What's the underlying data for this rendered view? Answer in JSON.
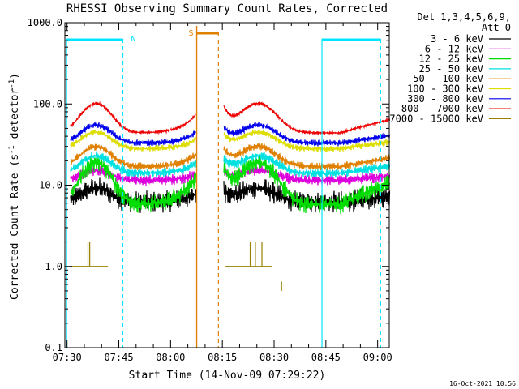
{
  "chart_data": {
    "type": "line",
    "title": "RHESSI Observing Summary Count Rates, Corrected",
    "xlabel": "Start Time (14-Nov-09 07:29:22)",
    "ylabel_main": "Corrected Count Rate (s",
    "ylabel_sup1": "-1",
    "ylabel_mid": " detector",
    "ylabel_sup2": "-1",
    "ylabel_end": ")",
    "yscale": "log",
    "ylim": [
      0.1,
      1000
    ],
    "xlim_minutes": [
      0,
      94
    ],
    "x_ticks": [
      "07:30",
      "07:45",
      "08:00",
      "08:15",
      "08:30",
      "08:45",
      "09:00"
    ],
    "y_ticks": [
      "0.1",
      "1.0",
      "10.0",
      "100.0",
      "1000.0"
    ],
    "legend": {
      "header1": "Det 1,3,4,5,6,9,",
      "header2": "Att 0",
      "placement": "right"
    },
    "series": [
      {
        "name": "3 - 6 keV",
        "color": "#000000",
        "base": 6.2,
        "amp": 3.0,
        "noise": 0.14
      },
      {
        "name": "6 - 12 keV",
        "color": "#dd00dd",
        "base": 11.5,
        "amp": 3.8,
        "noise": 0.07
      },
      {
        "name": "12 - 25 keV",
        "color": "#00dd00",
        "base": 5.8,
        "amp": 13.0,
        "noise": 0.12
      },
      {
        "name": "25 - 50 keV",
        "color": "#00e0e0",
        "base": 14.0,
        "amp": 9.0,
        "noise": 0.06
      },
      {
        "name": "50 - 100 keV",
        "color": "#e08000",
        "base": 17.0,
        "amp": 13.0,
        "noise": 0.05
      },
      {
        "name": "100 - 300 keV",
        "color": "#dddd00",
        "base": 28.0,
        "amp": 17.0,
        "noise": 0.04
      },
      {
        "name": "300 - 800 keV",
        "color": "#0000ee",
        "base": 33.0,
        "amp": 22.0,
        "noise": 0.04
      },
      {
        "name": "800 - 7000 keV",
        "color": "#ee0000",
        "base": 44.0,
        "amp": 57.0,
        "noise": 0.02
      },
      {
        "name": "7000 - 15000 keV",
        "color": "#998000",
        "base": 1.0,
        "amp": 0.0,
        "noise": 0.0
      }
    ],
    "segments_minutes": [
      [
        1.5,
        38.0
      ],
      [
        46.0,
        94.0
      ]
    ],
    "night_label": "N",
    "saa_label": "S",
    "night_bars_minutes": [
      [
        0.5,
        16.8
      ],
      [
        74.5,
        91.5
      ]
    ],
    "saa_bar_minutes": [
      38.2,
      44.5
    ],
    "night_boundaries_minutes": [
      0.5,
      16.8,
      74.5,
      91.5
    ],
    "saa_boundaries_minutes": [
      38.2,
      44.5
    ]
  },
  "timestamp": "16-Oct-2021 10:56",
  "colors": {
    "night": "#00e5ff",
    "saa": "#e08000",
    "axes": "#000000"
  }
}
